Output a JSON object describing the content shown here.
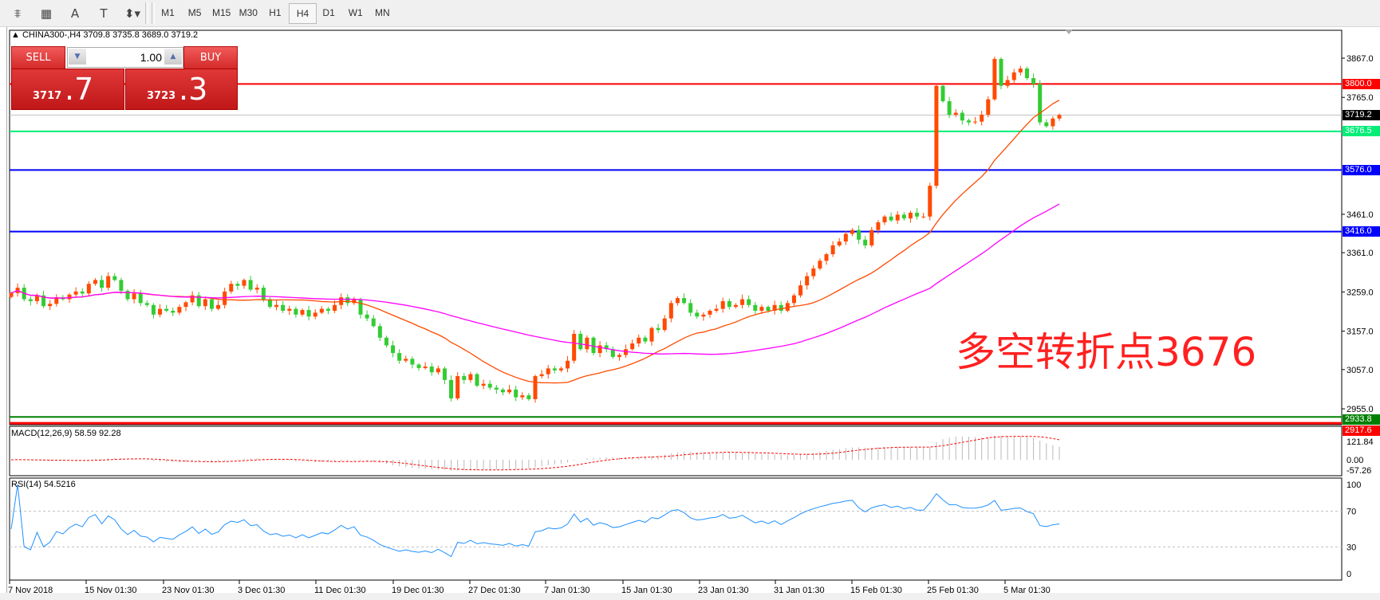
{
  "toolbar": {
    "tools": [
      {
        "name": "fibonacci-expansion-icon",
        "glyph": "⩨"
      },
      {
        "name": "fibonacci-fan-icon",
        "glyph": "▦"
      },
      {
        "name": "text-icon",
        "glyph": "A"
      },
      {
        "name": "text-label-icon",
        "glyph": "T"
      },
      {
        "name": "arrows-icon",
        "glyph": "⬍▾"
      }
    ],
    "timeframes": [
      "M1",
      "M5",
      "M15",
      "M30",
      "H1",
      "H4",
      "D1",
      "W1",
      "MN"
    ],
    "selected_timeframe": "H4"
  },
  "chart": {
    "header": "CHINA300-,H4  3709.8 3735.8 3689.0 3719.2",
    "annotation": "多空转折点3676",
    "colors": {
      "bull": "#ff4a00",
      "bear": "#33cc33",
      "ma_fast": "#ff4a00",
      "ma_slow": "#ff00ff",
      "rsi": "#1e90ff"
    }
  },
  "trade_panel": {
    "sell_label": "SELL",
    "buy_label": "BUY",
    "lot": "1.00",
    "sell_price_small": "3717",
    "sell_price_big": ".7",
    "buy_price_small": "3723",
    "buy_price_big": ".3"
  },
  "price_axis": {
    "ticks": [
      "3867.0",
      "3765.0",
      "3461.0",
      "3361.0",
      "3259.0",
      "3157.0",
      "3057.0",
      "2955.0"
    ],
    "levels": [
      {
        "label": "3800.0",
        "color": "#ff0000"
      },
      {
        "label": "3719.2",
        "color": "#000000"
      },
      {
        "label": "3676.5",
        "color": "#00ee77"
      },
      {
        "label": "3576.0",
        "color": "#0000ff"
      },
      {
        "label": "3416.0",
        "color": "#0000ff"
      },
      {
        "label": "2933.8",
        "color": "#008000"
      },
      {
        "label": "2917.6",
        "color": "#ff0000"
      }
    ]
  },
  "macd": {
    "label": "MACD(12,26,9) 58.59 92.28",
    "ticks": [
      "121.84",
      "0.00",
      "-57.26"
    ]
  },
  "rsi": {
    "label": "RSI(14) 54.5216",
    "ticks": [
      "100",
      "70",
      "30",
      "0"
    ]
  },
  "time_axis": [
    "7 Nov 2018",
    "15 Nov 01:30",
    "23 Nov 01:30",
    "3 Dec 01:30",
    "11 Dec 01:30",
    "19 Dec 01:30",
    "27 Dec 01:30",
    "7 Jan 01:30",
    "15 Jan 01:30",
    "23 Jan 01:30",
    "31 Jan 01:30",
    "15 Feb 01:30",
    "25 Feb 01:30",
    "5 Mar 01:30"
  ],
  "chart_data": {
    "type": "candlestick",
    "symbol": "CHINA300-",
    "timeframe": "H4",
    "ylim": [
      2917.6,
      3890
    ],
    "closes": [
      3256,
      3270,
      3240,
      3235,
      3250,
      3222,
      3228,
      3245,
      3240,
      3252,
      3260,
      3255,
      3280,
      3290,
      3270,
      3300,
      3290,
      3262,
      3240,
      3255,
      3230,
      3225,
      3200,
      3215,
      3210,
      3205,
      3220,
      3232,
      3250,
      3222,
      3240,
      3215,
      3225,
      3260,
      3280,
      3275,
      3290,
      3265,
      3270,
      3240,
      3220,
      3225,
      3210,
      3215,
      3200,
      3212,
      3195,
      3205,
      3215,
      3210,
      3225,
      3245,
      3230,
      3240,
      3200,
      3190,
      3170,
      3140,
      3120,
      3100,
      3080,
      3085,
      3070,
      3061,
      3065,
      3050,
      3060,
      3030,
      2982,
      3040,
      3030,
      3045,
      3015,
      3020,
      3010,
      3005,
      2998,
      3005,
      2985,
      2990,
      2980,
      3040,
      3045,
      3060,
      3055,
      3060,
      3080,
      3150,
      3110,
      3140,
      3100,
      3120,
      3110,
      3090,
      3095,
      3110,
      3125,
      3140,
      3130,
      3165,
      3160,
      3190,
      3230,
      3243,
      3230,
      3205,
      3195,
      3200,
      3210,
      3215,
      3235,
      3220,
      3225,
      3240,
      3225,
      3210,
      3220,
      3210,
      3225,
      3210,
      3230,
      3250,
      3276,
      3300,
      3320,
      3340,
      3357,
      3380,
      3390,
      3410,
      3420,
      3395,
      3380,
      3420,
      3440,
      3455,
      3445,
      3460,
      3450,
      3465,
      3455,
      3455,
      3535,
      3795,
      3755,
      3720,
      3725,
      3705,
      3700,
      3702,
      3720,
      3760,
      3865,
      3795,
      3810,
      3830,
      3840,
      3815,
      3800,
      3700,
      3690,
      3710,
      3719.2
    ],
    "horizontal_levels": [
      3800.0,
      3719.2,
      3676.5,
      3576.0,
      3416.0,
      2933.8,
      2917.6
    ]
  }
}
